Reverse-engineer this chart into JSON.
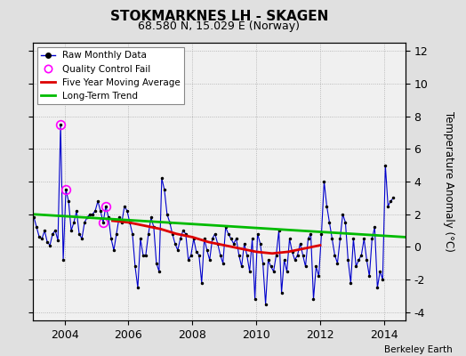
{
  "title": "STOKMARKNES LH - SKAGEN",
  "subtitle": "68.580 N, 15.029 E (Norway)",
  "ylabel": "Temperature Anomaly (°C)",
  "credit": "Berkeley Earth",
  "xlim": [
    2003.0,
    2014.67
  ],
  "ylim": [
    -4.5,
    12.5
  ],
  "yticks": [
    -4,
    -2,
    0,
    2,
    4,
    6,
    8,
    10,
    12
  ],
  "xticks": [
    2004,
    2006,
    2008,
    2010,
    2012,
    2014
  ],
  "bg_color": "#e0e0e0",
  "plot_bg": "#f0f0f0",
  "raw_color": "#0000cc",
  "ma_color": "#dd0000",
  "trend_color": "#00bb00",
  "qc_color": "#ff00ff",
  "raw_monthly": [
    [
      2003.042,
      1.8
    ],
    [
      2003.125,
      1.2
    ],
    [
      2003.208,
      0.6
    ],
    [
      2003.292,
      0.5
    ],
    [
      2003.375,
      1.0
    ],
    [
      2003.458,
      0.3
    ],
    [
      2003.542,
      0.1
    ],
    [
      2003.625,
      0.8
    ],
    [
      2003.708,
      1.0
    ],
    [
      2003.792,
      0.4
    ],
    [
      2003.875,
      7.5
    ],
    [
      2003.958,
      -0.8
    ],
    [
      2004.042,
      3.5
    ],
    [
      2004.125,
      2.8
    ],
    [
      2004.208,
      1.0
    ],
    [
      2004.292,
      1.5
    ],
    [
      2004.375,
      2.2
    ],
    [
      2004.458,
      0.8
    ],
    [
      2004.542,
      0.5
    ],
    [
      2004.625,
      1.5
    ],
    [
      2004.708,
      1.8
    ],
    [
      2004.792,
      2.0
    ],
    [
      2004.875,
      2.0
    ],
    [
      2004.958,
      2.2
    ],
    [
      2005.042,
      2.8
    ],
    [
      2005.125,
      2.2
    ],
    [
      2005.208,
      1.5
    ],
    [
      2005.292,
      2.5
    ],
    [
      2005.375,
      1.8
    ],
    [
      2005.458,
      0.5
    ],
    [
      2005.542,
      -0.2
    ],
    [
      2005.625,
      0.8
    ],
    [
      2005.708,
      1.8
    ],
    [
      2005.792,
      1.5
    ],
    [
      2005.875,
      2.5
    ],
    [
      2005.958,
      2.2
    ],
    [
      2006.042,
      1.5
    ],
    [
      2006.125,
      0.8
    ],
    [
      2006.208,
      -1.2
    ],
    [
      2006.292,
      -2.5
    ],
    [
      2006.375,
      0.5
    ],
    [
      2006.458,
      -0.5
    ],
    [
      2006.542,
      -0.5
    ],
    [
      2006.625,
      0.8
    ],
    [
      2006.708,
      1.8
    ],
    [
      2006.792,
      1.2
    ],
    [
      2006.875,
      -1.0
    ],
    [
      2006.958,
      -1.5
    ],
    [
      2007.042,
      4.2
    ],
    [
      2007.125,
      3.5
    ],
    [
      2007.208,
      2.0
    ],
    [
      2007.292,
      1.5
    ],
    [
      2007.375,
      0.8
    ],
    [
      2007.458,
      0.2
    ],
    [
      2007.542,
      -0.2
    ],
    [
      2007.625,
      0.5
    ],
    [
      2007.708,
      1.0
    ],
    [
      2007.792,
      0.8
    ],
    [
      2007.875,
      -0.8
    ],
    [
      2007.958,
      -0.5
    ],
    [
      2008.042,
      0.5
    ],
    [
      2008.125,
      -0.3
    ],
    [
      2008.208,
      -0.5
    ],
    [
      2008.292,
      -2.2
    ],
    [
      2008.375,
      0.5
    ],
    [
      2008.458,
      -0.2
    ],
    [
      2008.542,
      -0.8
    ],
    [
      2008.625,
      0.5
    ],
    [
      2008.708,
      0.8
    ],
    [
      2008.792,
      0.2
    ],
    [
      2008.875,
      -0.5
    ],
    [
      2008.958,
      -1.0
    ],
    [
      2009.042,
      1.2
    ],
    [
      2009.125,
      0.8
    ],
    [
      2009.208,
      0.5
    ],
    [
      2009.292,
      0.2
    ],
    [
      2009.375,
      0.5
    ],
    [
      2009.458,
      -0.5
    ],
    [
      2009.542,
      -1.2
    ],
    [
      2009.625,
      0.2
    ],
    [
      2009.708,
      -0.5
    ],
    [
      2009.792,
      -1.5
    ],
    [
      2009.875,
      0.5
    ],
    [
      2009.958,
      -3.2
    ],
    [
      2010.042,
      0.8
    ],
    [
      2010.125,
      0.2
    ],
    [
      2010.208,
      -1.0
    ],
    [
      2010.292,
      -3.5
    ],
    [
      2010.375,
      -0.8
    ],
    [
      2010.458,
      -1.2
    ],
    [
      2010.542,
      -1.5
    ],
    [
      2010.625,
      -0.5
    ],
    [
      2010.708,
      1.0
    ],
    [
      2010.792,
      -2.8
    ],
    [
      2010.875,
      -0.8
    ],
    [
      2010.958,
      -1.5
    ],
    [
      2011.042,
      0.5
    ],
    [
      2011.125,
      -0.3
    ],
    [
      2011.208,
      -0.8
    ],
    [
      2011.292,
      -0.5
    ],
    [
      2011.375,
      0.2
    ],
    [
      2011.458,
      -0.5
    ],
    [
      2011.542,
      -1.2
    ],
    [
      2011.625,
      0.5
    ],
    [
      2011.708,
      0.8
    ],
    [
      2011.792,
      -3.2
    ],
    [
      2011.875,
      -1.2
    ],
    [
      2011.958,
      -1.8
    ],
    [
      2012.042,
      0.8
    ],
    [
      2012.125,
      4.0
    ],
    [
      2012.208,
      2.5
    ],
    [
      2012.292,
      1.5
    ],
    [
      2012.375,
      0.5
    ],
    [
      2012.458,
      -0.5
    ],
    [
      2012.542,
      -1.0
    ],
    [
      2012.625,
      0.5
    ],
    [
      2012.708,
      2.0
    ],
    [
      2012.792,
      1.5
    ],
    [
      2012.875,
      -0.8
    ],
    [
      2012.958,
      -2.2
    ],
    [
      2013.042,
      0.5
    ],
    [
      2013.125,
      -1.2
    ],
    [
      2013.208,
      -0.8
    ],
    [
      2013.292,
      -0.5
    ],
    [
      2013.375,
      0.5
    ],
    [
      2013.458,
      -0.8
    ],
    [
      2013.542,
      -1.8
    ],
    [
      2013.625,
      0.5
    ],
    [
      2013.708,
      1.2
    ],
    [
      2013.792,
      -2.5
    ],
    [
      2013.875,
      -1.5
    ],
    [
      2013.958,
      -2.0
    ],
    [
      2014.042,
      5.0
    ],
    [
      2014.125,
      2.5
    ],
    [
      2014.208,
      2.8
    ],
    [
      2014.292,
      3.0
    ]
  ],
  "qc_fail": [
    [
      2003.875,
      7.5
    ],
    [
      2004.042,
      3.5
    ],
    [
      2005.208,
      1.5
    ],
    [
      2005.292,
      2.5
    ]
  ],
  "moving_avg_x": [
    2005.5,
    2006.0,
    2006.5,
    2007.0,
    2007.5,
    2008.0,
    2008.5,
    2009.0,
    2009.5,
    2010.0,
    2010.5,
    2011.0,
    2011.5,
    2012.0
  ],
  "moving_avg_y": [
    1.6,
    1.5,
    1.3,
    1.1,
    0.8,
    0.6,
    0.3,
    0.1,
    -0.1,
    -0.3,
    -0.4,
    -0.3,
    -0.1,
    0.1
  ],
  "trend_x": [
    2003.0,
    2014.67
  ],
  "trend_y": [
    2.0,
    0.6
  ]
}
